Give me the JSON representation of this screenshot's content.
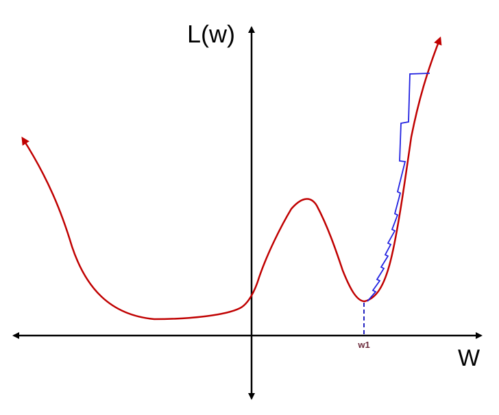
{
  "axes": {
    "y_label": "L(w)",
    "x_label": "W"
  },
  "marker": {
    "label": "w1"
  }
}
